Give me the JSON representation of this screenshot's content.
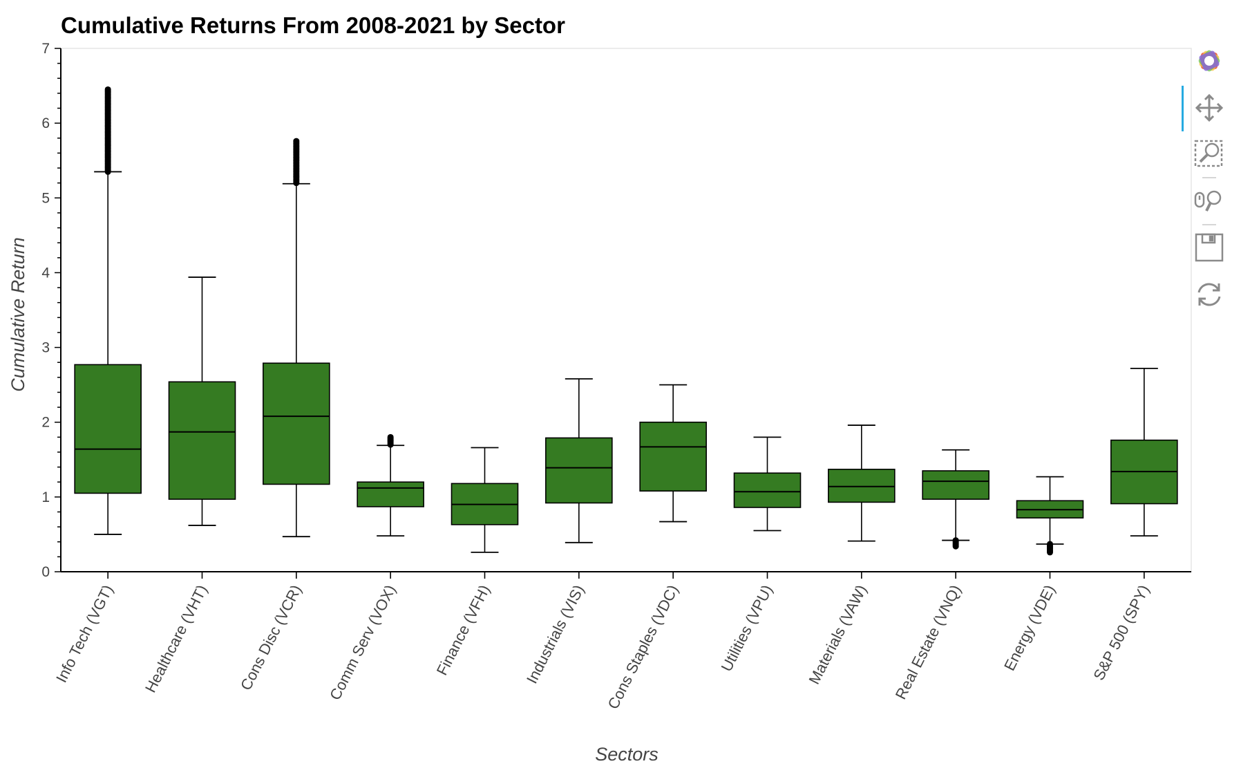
{
  "chart_data": {
    "type": "box",
    "title": "Cumulative Returns From 2008-2021 by Sector",
    "xlabel": "Sectors",
    "ylabel": "Cumulative Return",
    "ylim": [
      0,
      7
    ],
    "yticks": [
      0,
      1,
      2,
      3,
      4,
      5,
      6,
      7
    ],
    "grid": false,
    "legend": "none",
    "box_color": "#357b22",
    "categories": [
      "Info Tech (VGT)",
      "Healthcare (VHT)",
      "Cons Disc (VCR)",
      "Comm Serv (VOX)",
      "Finance (VFH)",
      "Industrials (VIS)",
      "Cons Staples (VDC)",
      "Utilities (VPU)",
      "Materials (VAW)",
      "Real Estate (VNQ)",
      "Energy (VDE)",
      "S&P 500 (SPY)"
    ],
    "boxes": [
      {
        "lower_whisker": 0.5,
        "q1": 1.05,
        "median": 1.64,
        "q3": 2.77,
        "upper_whisker": 5.35,
        "outliers_range": [
          5.35,
          6.45
        ]
      },
      {
        "lower_whisker": 0.62,
        "q1": 0.97,
        "median": 1.87,
        "q3": 2.54,
        "upper_whisker": 3.94
      },
      {
        "lower_whisker": 0.47,
        "q1": 1.17,
        "median": 2.08,
        "q3": 2.79,
        "upper_whisker": 5.19,
        "outliers_range": [
          5.2,
          5.76
        ]
      },
      {
        "lower_whisker": 0.48,
        "q1": 0.87,
        "median": 1.12,
        "q3": 1.2,
        "upper_whisker": 1.69,
        "outliers_range": [
          1.7,
          1.8
        ]
      },
      {
        "lower_whisker": 0.26,
        "q1": 0.63,
        "median": 0.9,
        "q3": 1.18,
        "upper_whisker": 1.66
      },
      {
        "lower_whisker": 0.39,
        "q1": 0.92,
        "median": 1.39,
        "q3": 1.79,
        "upper_whisker": 2.58
      },
      {
        "lower_whisker": 0.67,
        "q1": 1.08,
        "median": 1.67,
        "q3": 2.0,
        "upper_whisker": 2.5
      },
      {
        "lower_whisker": 0.55,
        "q1": 0.86,
        "median": 1.07,
        "q3": 1.32,
        "upper_whisker": 1.8
      },
      {
        "lower_whisker": 0.41,
        "q1": 0.93,
        "median": 1.14,
        "q3": 1.37,
        "upper_whisker": 1.96
      },
      {
        "lower_whisker": 0.42,
        "q1": 0.97,
        "median": 1.21,
        "q3": 1.35,
        "upper_whisker": 1.63,
        "outliers_range": [
          0.34,
          0.42
        ]
      },
      {
        "lower_whisker": 0.37,
        "q1": 0.72,
        "median": 0.83,
        "q3": 0.95,
        "upper_whisker": 1.27,
        "outliers_range": [
          0.26,
          0.37
        ]
      },
      {
        "lower_whisker": 0.48,
        "q1": 0.91,
        "median": 1.34,
        "q3": 1.76,
        "upper_whisker": 2.72
      }
    ]
  },
  "toolbar": {
    "tools": [
      {
        "name": "bokeh-logo",
        "icon": "bokeh-logo-icon"
      },
      {
        "name": "pan",
        "icon": "pan-icon"
      },
      {
        "name": "box-zoom",
        "icon": "box-zoom-icon"
      },
      {
        "name": "wheel-zoom",
        "icon": "wheel-zoom-icon"
      },
      {
        "name": "save",
        "icon": "save-icon"
      },
      {
        "name": "reset",
        "icon": "reset-icon"
      }
    ]
  }
}
